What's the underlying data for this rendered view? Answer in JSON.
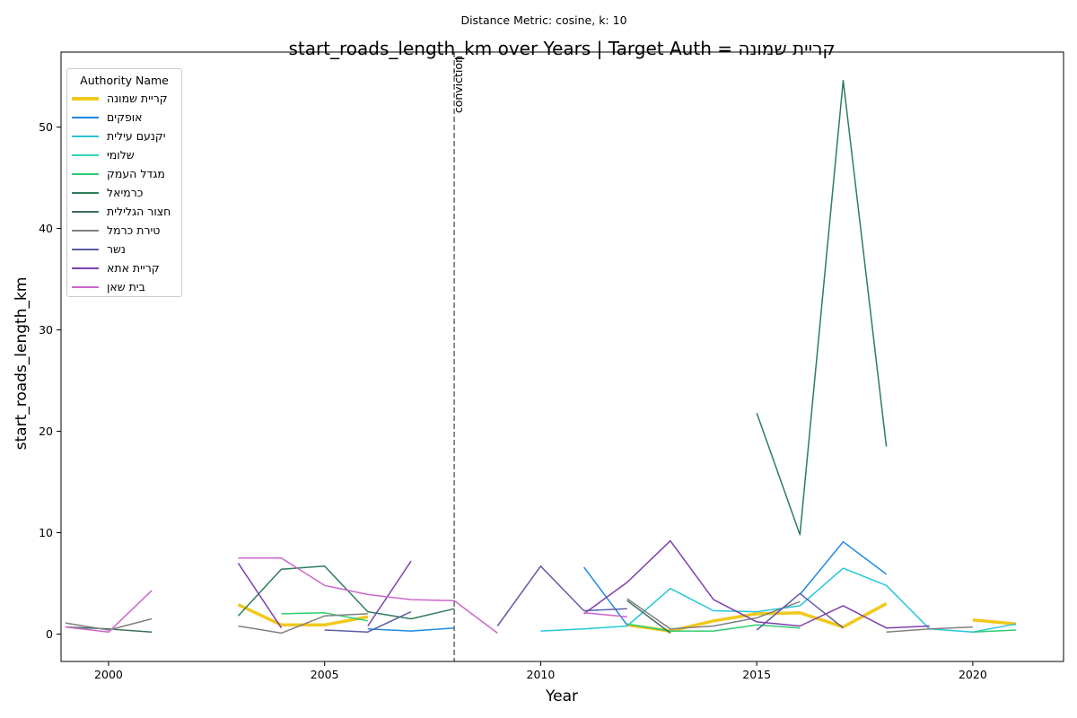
{
  "chart_data": {
    "type": "line",
    "suptitle": "Distance Metric: cosine, k: 10",
    "title": "start_roads_length_km over Years | Target Auth = קריית שמונה",
    "xlabel": "Year",
    "ylabel": "start_roads_length_km",
    "xlim": [
      1998.9,
      2022.1
    ],
    "ylim": [
      -2.7,
      57.4
    ],
    "xticks": [
      2000,
      2005,
      2010,
      2015,
      2020
    ],
    "yticks": [
      0,
      10,
      20,
      30,
      40,
      50
    ],
    "grid": false,
    "vline": {
      "x": 2008,
      "label": "conviction"
    },
    "legend": {
      "title": "Authority Name",
      "placement": "top-left"
    },
    "series": [
      {
        "name": "קריית שמונה",
        "color": "#f2c81c",
        "width": 3.5,
        "points": [
          [
            2003,
            2.9
          ],
          [
            2004,
            0.9
          ],
          [
            2005,
            0.9
          ],
          [
            2006,
            1.7
          ],
          null,
          [
            2012,
            0.9
          ],
          [
            2013,
            0.3
          ],
          [
            2014,
            1.3
          ],
          [
            2015,
            2.0
          ],
          [
            2016,
            2.1
          ],
          [
            2017,
            0.7
          ],
          [
            2018,
            3.0
          ],
          null,
          [
            2020,
            1.4
          ],
          [
            2021,
            1.0
          ]
        ]
      },
      {
        "name": "אופקים",
        "color": "#1e88e5",
        "width": 1.5,
        "points": [
          [
            2006,
            0.5
          ],
          [
            2007,
            0.3
          ],
          [
            2008,
            0.6
          ],
          null,
          [
            2011,
            6.6
          ],
          [
            2012,
            0.9
          ],
          null,
          [
            2016,
            3.9
          ],
          [
            2017,
            9.1
          ],
          [
            2018,
            5.9
          ]
        ]
      },
      {
        "name": "יקנעם עילית",
        "color": "#26c6da",
        "width": 1.5,
        "points": [
          [
            2010,
            0.3
          ],
          [
            2011,
            0.5
          ],
          [
            2012,
            0.8
          ],
          [
            2013,
            4.5
          ],
          [
            2014,
            2.3
          ],
          [
            2015,
            2.2
          ],
          [
            2016,
            2.8
          ],
          [
            2017,
            6.5
          ],
          [
            2018,
            4.8
          ],
          [
            2019,
            0.5
          ],
          [
            2020,
            0.2
          ],
          [
            2021,
            1.0
          ]
        ]
      },
      {
        "name": "שלומי",
        "color": "#2ed8b6",
        "width": 1.5,
        "points": []
      },
      {
        "name": "מגדל העמק",
        "color": "#2ecc71",
        "width": 1.5,
        "points": [
          [
            2004,
            2.0
          ],
          [
            2005,
            2.1
          ],
          [
            2006,
            1.3
          ],
          null,
          [
            2012,
            1.0
          ],
          [
            2013,
            0.3
          ],
          [
            2014,
            0.3
          ],
          [
            2015,
            0.9
          ],
          [
            2016,
            0.6
          ],
          null,
          [
            2020,
            0.2
          ],
          [
            2021,
            0.4
          ]
        ]
      },
      {
        "name": "כרמיאל",
        "color": "#2e7d5b",
        "width": 1.5,
        "points": [
          [
            2003,
            1.8
          ],
          [
            2004,
            6.4
          ],
          [
            2005,
            6.7
          ],
          [
            2006,
            2.2
          ],
          [
            2007,
            1.5
          ],
          [
            2008,
            2.5
          ],
          null,
          [
            2015,
            21.8
          ],
          [
            2016,
            9.8
          ],
          [
            2017,
            54.6
          ],
          [
            2018,
            18.5
          ]
        ]
      },
      {
        "name": "חצור הגלילית",
        "color": "#3d6e5a",
        "width": 1.5,
        "points": [
          [
            1999,
            0.7
          ],
          [
            2000,
            0.5
          ],
          [
            2001,
            0.2
          ],
          null,
          [
            2012,
            3.3
          ],
          [
            2013,
            0.1
          ]
        ]
      },
      {
        "name": "טירת כרמל",
        "color": "#808080",
        "width": 1.5,
        "points": [
          [
            1999,
            1.1
          ],
          [
            2000,
            0.4
          ],
          [
            2001,
            1.5
          ],
          null,
          [
            2003,
            0.8
          ],
          [
            2004,
            0.1
          ],
          [
            2005,
            1.8
          ],
          [
            2006,
            2.0
          ],
          null,
          [
            2012,
            3.5
          ],
          [
            2013,
            0.5
          ],
          [
            2014,
            0.8
          ],
          [
            2015,
            1.6
          ],
          [
            2016,
            3.2
          ],
          null,
          [
            2018,
            0.2
          ],
          [
            2019,
            0.5
          ],
          [
            2020,
            0.7
          ]
        ]
      },
      {
        "name": "נשר",
        "color": "#5b5ea6",
        "width": 1.5,
        "points": [
          [
            2005,
            0.4
          ],
          [
            2006,
            0.2
          ],
          [
            2007,
            2.2
          ],
          null,
          [
            2009,
            0.8
          ],
          [
            2010,
            6.7
          ],
          [
            2011,
            2.3
          ],
          [
            2012,
            2.5
          ],
          null,
          [
            2015,
            0.4
          ],
          [
            2016,
            4.0
          ],
          [
            2017,
            0.6
          ]
        ]
      },
      {
        "name": "קריית אתא",
        "color": "#7e3fb0",
        "width": 1.5,
        "points": [
          [
            2003,
            7.0
          ],
          [
            2004,
            0.6
          ],
          null,
          [
            2006,
            0.8
          ],
          [
            2007,
            7.2
          ],
          null,
          [
            2011,
            2.0
          ],
          [
            2012,
            5.1
          ],
          [
            2013,
            9.2
          ],
          [
            2014,
            3.4
          ],
          [
            2015,
            1.2
          ],
          [
            2016,
            0.8
          ],
          [
            2017,
            2.8
          ],
          [
            2018,
            0.6
          ],
          [
            2019,
            0.8
          ]
        ]
      },
      {
        "name": "בית שאן",
        "color": "#cc66cc",
        "width": 1.5,
        "points": [
          [
            1999,
            0.7
          ],
          [
            2000,
            0.2
          ],
          [
            2001,
            4.3
          ],
          null,
          [
            2003,
            7.5
          ],
          [
            2004,
            7.5
          ],
          [
            2005,
            4.8
          ],
          [
            2006,
            3.9
          ],
          [
            2007,
            3.4
          ],
          [
            2008,
            3.3
          ],
          [
            2009,
            0.1
          ],
          null,
          [
            2011,
            2.1
          ],
          [
            2012,
            1.7
          ]
        ]
      }
    ]
  }
}
